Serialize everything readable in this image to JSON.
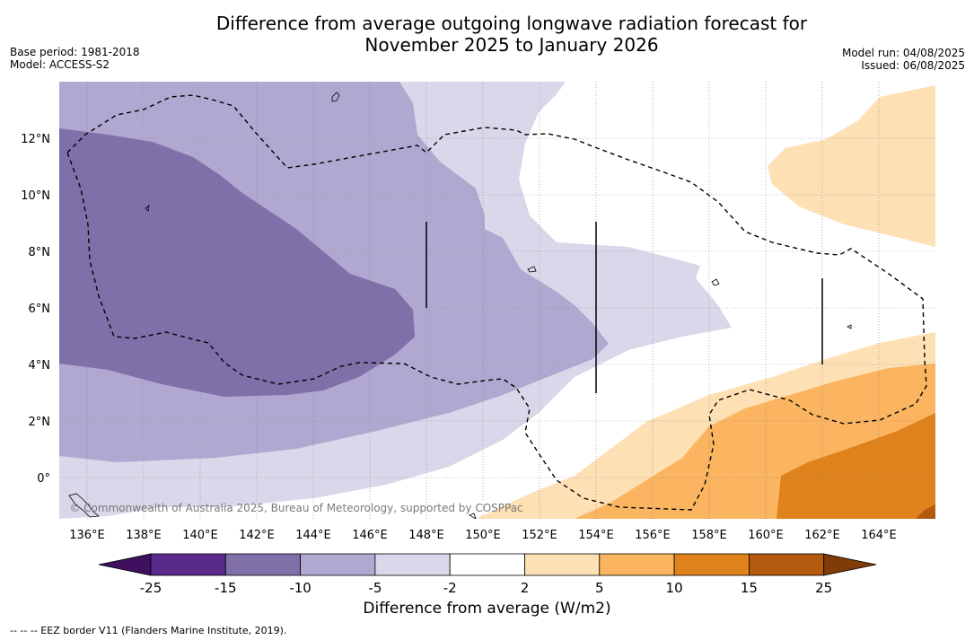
{
  "header": {
    "title_line1": "Difference from average outgoing longwave radiation forecast for",
    "title_line2": "November 2025 to January 2026",
    "base_period": "Base period: 1981-2018",
    "model": "Model: ACCESS-S2",
    "model_run": "Model run: 04/08/2025",
    "issued": "Issued: 06/08/2025"
  },
  "map": {
    "lon_labels": [
      "136°E",
      "138°E",
      "140°E",
      "142°E",
      "144°E",
      "146°E",
      "148°E",
      "150°E",
      "152°E",
      "154°E",
      "156°E",
      "158°E",
      "160°E",
      "162°E",
      "164°E"
    ],
    "lat_labels": [
      "12°N",
      "10°N",
      "8°N",
      "6°N",
      "4°N",
      "2°N",
      "0°"
    ],
    "copyright": "© Commonwealth of Australia 2025, Bureau of Meteorology, supported by COSPPac"
  },
  "colorbar": {
    "ticks": [
      "-25",
      "-15",
      "-10",
      "-5",
      "-2",
      "2",
      "5",
      "10",
      "15",
      "25"
    ],
    "colors": [
      "#3f0f60",
      "#592a8a",
      "#7f70aa",
      "#b0a8d0",
      "#d8d8ea",
      "#ffffff",
      "#fde0b4",
      "#fbb45f",
      "#e0821b",
      "#b35a0f",
      "#7f3b08"
    ],
    "label": "Difference from average (W/m2)"
  },
  "footer": "-- -- -- EEZ border V11 (Flanders Marine Institute, 2019)."
}
